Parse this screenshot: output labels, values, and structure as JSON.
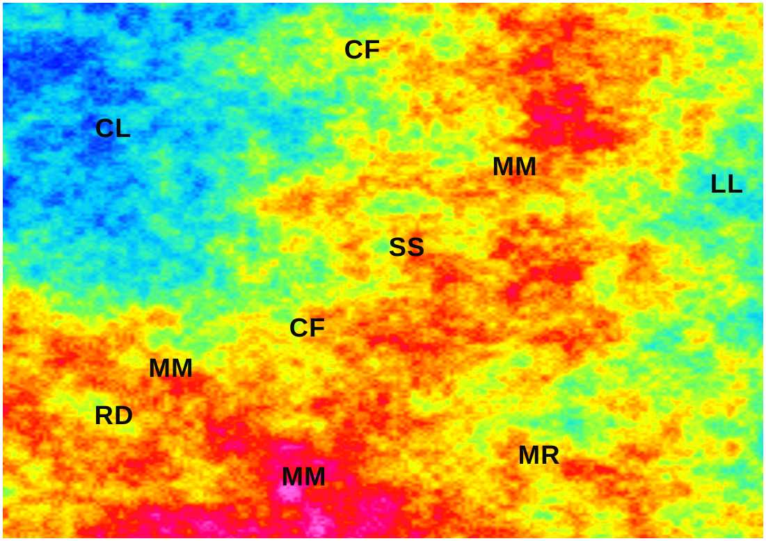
{
  "map": {
    "labels": [
      {
        "id": "cf-top",
        "text": "CF"
      },
      {
        "id": "cl",
        "text": "CL"
      },
      {
        "id": "mm-top",
        "text": "MM"
      },
      {
        "id": "ll",
        "text": "LL"
      },
      {
        "id": "ss",
        "text": "SS"
      },
      {
        "id": "cf-mid",
        "text": "CF"
      },
      {
        "id": "mm-left",
        "text": "MM"
      },
      {
        "id": "rd",
        "text": "RD"
      },
      {
        "id": "mr",
        "text": "MR"
      },
      {
        "id": "mm-bottom",
        "text": "MM"
      }
    ],
    "palette": [
      "#0000ff",
      "#0a5cff",
      "#00c8ff",
      "#27f0c8",
      "#7cff4a",
      "#ffff00",
      "#ff9a00",
      "#ff1a00",
      "#ff0080",
      "#ff66e6"
    ]
  }
}
